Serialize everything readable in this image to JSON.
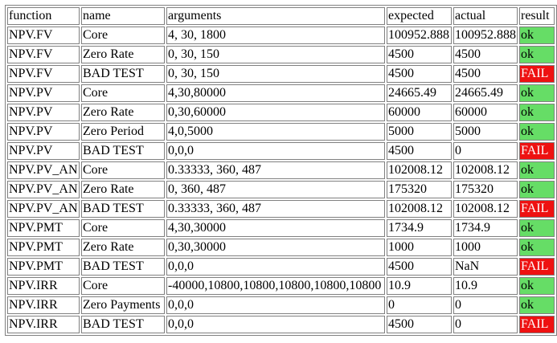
{
  "headers": [
    "function",
    "name",
    "arguments",
    "expected",
    "actual",
    "result"
  ],
  "rows": [
    {
      "function": "NPV.FV",
      "name": "Core",
      "arguments": "4, 30, 1800",
      "expected": "100952.888",
      "actual": "100952.888",
      "result": "ok"
    },
    {
      "function": "NPV.FV",
      "name": "Zero Rate",
      "arguments": "0, 30, 150",
      "expected": "4500",
      "actual": "4500",
      "result": "ok"
    },
    {
      "function": "NPV.FV",
      "name": "BAD TEST",
      "arguments": "0, 30, 150",
      "expected": "4500",
      "actual": "4500",
      "result": "FAIL"
    },
    {
      "function": "NPV.PV",
      "name": "Core",
      "arguments": "4,30,80000",
      "expected": "24665.49",
      "actual": "24665.49",
      "result": "ok"
    },
    {
      "function": "NPV.PV",
      "name": "Zero Rate",
      "arguments": "0,30,60000",
      "expected": "60000",
      "actual": "60000",
      "result": "ok"
    },
    {
      "function": "NPV.PV",
      "name": "Zero Period",
      "arguments": "4,0,5000",
      "expected": "5000",
      "actual": "5000",
      "result": "ok"
    },
    {
      "function": "NPV.PV",
      "name": "BAD TEST",
      "arguments": "0,0,0",
      "expected": "4500",
      "actual": "0",
      "result": "FAIL"
    },
    {
      "function": "NPV.PV_AN",
      "name": "Core",
      "arguments": "0.33333, 360, 487",
      "expected": "102008.12",
      "actual": "102008.12",
      "result": "ok"
    },
    {
      "function": "NPV.PV_AN",
      "name": "Zero Rate",
      "arguments": "0, 360, 487",
      "expected": "175320",
      "actual": "175320",
      "result": "ok"
    },
    {
      "function": "NPV.PV_AN",
      "name": "BAD TEST",
      "arguments": "0.33333, 360, 487",
      "expected": "102008.12",
      "actual": "102008.12",
      "result": "FAIL"
    },
    {
      "function": "NPV.PMT",
      "name": "Core",
      "arguments": "4,30,30000",
      "expected": "1734.9",
      "actual": "1734.9",
      "result": "ok"
    },
    {
      "function": "NPV.PMT",
      "name": "Zero Rate",
      "arguments": "0,30,30000",
      "expected": "1000",
      "actual": "1000",
      "result": "ok"
    },
    {
      "function": "NPV.PMT",
      "name": "BAD TEST",
      "arguments": "0,0,0",
      "expected": "4500",
      "actual": "NaN",
      "result": "FAIL"
    },
    {
      "function": "NPV.IRR",
      "name": "Core",
      "arguments": "-40000,10800,10800,10800,10800,10800",
      "expected": "10.9",
      "actual": "10.9",
      "result": "ok"
    },
    {
      "function": "NPV.IRR",
      "name": "Zero Payments",
      "arguments": "0,0,0",
      "expected": "0",
      "actual": "0",
      "result": "ok"
    },
    {
      "function": "NPV.IRR",
      "name": "BAD TEST",
      "arguments": "0,0,0",
      "expected": "4500",
      "actual": "0",
      "result": "FAIL"
    }
  ],
  "colors": {
    "ok": "#66dd66",
    "fail": "#ee1111"
  }
}
